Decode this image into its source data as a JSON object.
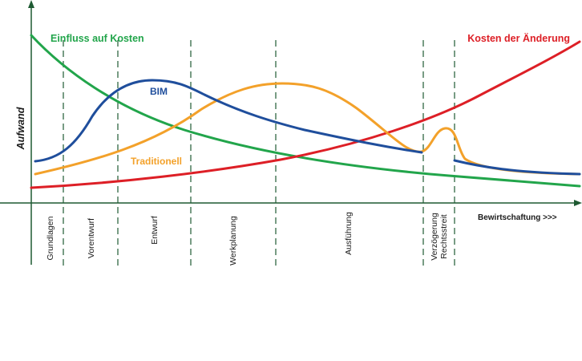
{
  "diagram": {
    "y_axis_label": "Aufwand",
    "x_axis_label": "Bewirtschaftung >>>",
    "colors": {
      "axis": "#1e5a32",
      "einfluss": "#22a54b",
      "kosten": "#dd1f26",
      "bim": "#1f4e9c",
      "traditionell": "#f3a12a"
    },
    "curves": {
      "einfluss": "Einfluss auf Kosten",
      "kosten": "Kosten der Änderung",
      "bim": "BIM",
      "traditionell": "Traditionell"
    },
    "phases": {
      "grundlagen": "Grundlagen",
      "vorentwurf": "Vorentwurf",
      "entwurf": "Entwurf",
      "werkplanung": "Werkplanung",
      "ausfuehrung": "Ausführung",
      "verzoegerung_line1": "Verzögerung",
      "verzoegerung_line2": "Rechtsstreit"
    }
  }
}
